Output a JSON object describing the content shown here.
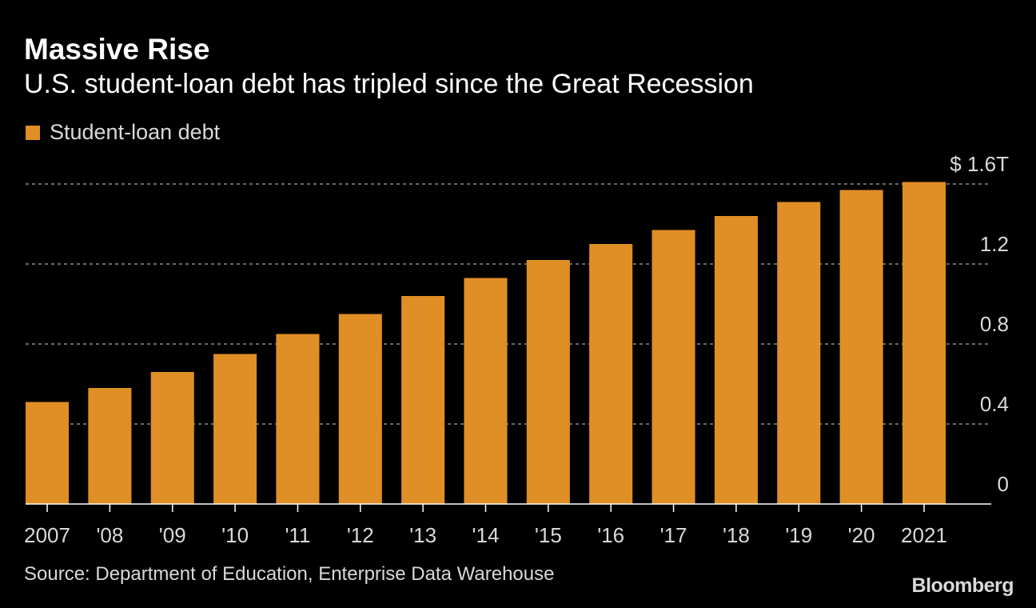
{
  "header": {
    "title": "Massive Rise",
    "subtitle": "U.S. student-loan debt has tripled since the Great Recession"
  },
  "legend": {
    "label": "Student-loan debt"
  },
  "colors": {
    "bar": "#e08e26",
    "background": "#000000",
    "grid": "#8c8c8c",
    "text": "#d9d9d9"
  },
  "footer": {
    "source": "Source: Department of Education, Enterprise Data Warehouse",
    "brand": "Bloomberg"
  },
  "chart_data": {
    "type": "bar",
    "categories": [
      "2007",
      "'08",
      "'09",
      "'10",
      "'11",
      "'12",
      "'13",
      "'14",
      "'15",
      "'16",
      "'17",
      "'18",
      "'19",
      "'20",
      "2021"
    ],
    "series": [
      {
        "name": "Student-loan debt",
        "values": [
          0.51,
          0.58,
          0.66,
          0.75,
          0.85,
          0.95,
          1.04,
          1.13,
          1.22,
          1.3,
          1.37,
          1.44,
          1.51,
          1.57,
          1.61
        ]
      }
    ],
    "ylim": [
      0,
      1.6
    ],
    "yticks": [
      {
        "value": 1.6,
        "label": "$ 1.6T"
      },
      {
        "value": 1.2,
        "label": "1.2"
      },
      {
        "value": 0.8,
        "label": "0.8"
      },
      {
        "value": 0.4,
        "label": "0.4"
      },
      {
        "value": 0,
        "label": "0"
      }
    ],
    "y_axis_position": "right",
    "grid": "dashed horizontal"
  }
}
